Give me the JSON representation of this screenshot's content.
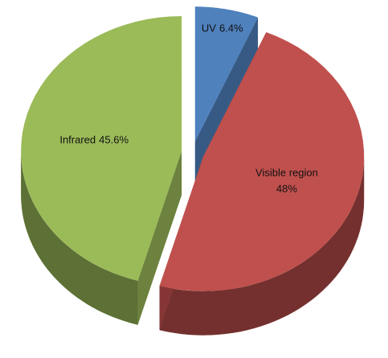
{
  "chart_data": {
    "type": "pie3d",
    "categories": [
      "UV",
      "Visible region",
      "Infrared"
    ],
    "values": [
      6.4,
      48,
      45.6
    ],
    "value_labels": [
      "6.4%",
      "48%",
      "45.6%"
    ],
    "colors": [
      "#4f81bd",
      "#c0504d",
      "#9bbb59"
    ]
  }
}
